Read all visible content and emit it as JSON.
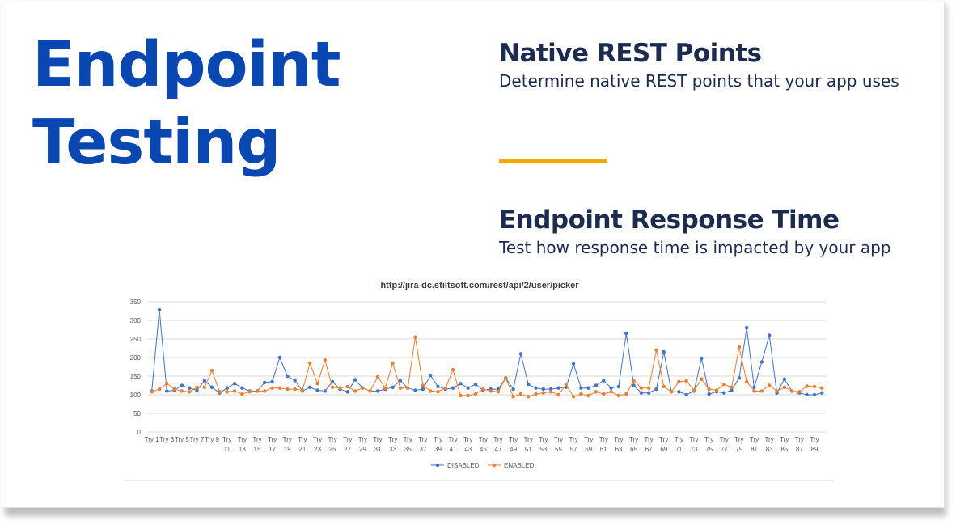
{
  "slide": {
    "title": "Endpoint Testing",
    "section1": {
      "heading": "Native REST Points",
      "text": "Determine native REST points that your app uses"
    },
    "section2": {
      "heading": "Endpoint Response Time",
      "text": "Test how response time is impacted by your app"
    }
  },
  "colors": {
    "title": "#0b47b1",
    "heading": "#1d2b4f",
    "divider": "#f5a800",
    "disabled": "#4472c4",
    "enabled": "#ed7d31"
  },
  "chart_data": {
    "type": "line",
    "title": "http://jira-dc.stiltsoft.com/rest/api/2/user/picker",
    "xlabel": "",
    "ylabel": "",
    "ylim": [
      0,
      350
    ],
    "yticks": [
      0,
      50,
      100,
      150,
      200,
      250,
      300,
      350
    ],
    "grid": true,
    "legend": "bottom",
    "x": [
      "Try 1",
      "Try 2",
      "Try 3",
      "Try 4",
      "Try 5",
      "Try 6",
      "Try 7",
      "Try 8",
      "Try 9",
      "Try 10",
      "Try 11",
      "Try 12",
      "Try 13",
      "Try 14",
      "Try 15",
      "Try 16",
      "Try 17",
      "Try 18",
      "Try 19",
      "Try 20",
      "Try 21",
      "Try 22",
      "Try 23",
      "Try 24",
      "Try 25",
      "Try 26",
      "Try 27",
      "Try 28",
      "Try 29",
      "Try 30",
      "Try 31",
      "Try 32",
      "Try 33",
      "Try 34",
      "Try 35",
      "Try 36",
      "Try 37",
      "Try 38",
      "Try 39",
      "Try 40",
      "Try 41",
      "Try 42",
      "Try 43",
      "Try 44",
      "Try 45",
      "Try 46",
      "Try 47",
      "Try 48",
      "Try 49",
      "Try 50",
      "Try 51",
      "Try 52",
      "Try 53",
      "Try 54",
      "Try 55",
      "Try 56",
      "Try 57",
      "Try 58",
      "Try 59",
      "Try 60",
      "Try 61",
      "Try 62",
      "Try 63",
      "Try 64",
      "Try 65",
      "Try 66",
      "Try 67",
      "Try 68",
      "Try 69",
      "Try 70",
      "Try 71",
      "Try 72",
      "Try 73",
      "Try 74",
      "Try 75",
      "Try 76",
      "Try 77",
      "Try 78",
      "Try 79",
      "Try 80",
      "Try 81",
      "Try 82",
      "Try 83",
      "Try 84",
      "Try 85",
      "Try 86",
      "Try 87",
      "Try 88",
      "Try 89",
      "Try 90"
    ],
    "tick_labels": [
      [
        "Try 1"
      ],
      [
        "Try 3"
      ],
      [
        "Try 5"
      ],
      [
        "Try 7"
      ],
      [
        "Try 9"
      ],
      [
        "Try",
        "11"
      ],
      [
        "Try",
        "13"
      ],
      [
        "Try",
        "15"
      ],
      [
        "Try",
        "17"
      ],
      [
        "Try",
        "19"
      ],
      [
        "Try",
        "21"
      ],
      [
        "Try",
        "23"
      ],
      [
        "Try",
        "25"
      ],
      [
        "Try",
        "27"
      ],
      [
        "Try",
        "29"
      ],
      [
        "Try",
        "31"
      ],
      [
        "Try",
        "33"
      ],
      [
        "Try",
        "35"
      ],
      [
        "Try",
        "37"
      ],
      [
        "Try",
        "39"
      ],
      [
        "Try",
        "41"
      ],
      [
        "Try",
        "43"
      ],
      [
        "Try",
        "45"
      ],
      [
        "Try",
        "47"
      ],
      [
        "Try",
        "49"
      ],
      [
        "Try",
        "51"
      ],
      [
        "Try",
        "53"
      ],
      [
        "Try",
        "55"
      ],
      [
        "Try",
        "57"
      ],
      [
        "Try",
        "59"
      ],
      [
        "Try",
        "61"
      ],
      [
        "Try",
        "63"
      ],
      [
        "Try",
        "65"
      ],
      [
        "Try",
        "67"
      ],
      [
        "Try",
        "69"
      ],
      [
        "Try",
        "71"
      ],
      [
        "Try",
        "73"
      ],
      [
        "Try",
        "75"
      ],
      [
        "Try",
        "77"
      ],
      [
        "Try",
        "79"
      ],
      [
        "Try",
        "81"
      ],
      [
        "Try",
        "83"
      ],
      [
        "Try",
        "85"
      ],
      [
        "Try",
        "87"
      ],
      [
        "Try",
        "89"
      ]
    ],
    "series": [
      {
        "name": "DISABLED",
        "color": "#4472c4",
        "values": [
          110,
          328,
          110,
          112,
          125,
          118,
          112,
          138,
          120,
          105,
          118,
          130,
          118,
          110,
          110,
          133,
          135,
          200,
          150,
          138,
          110,
          120,
          112,
          110,
          135,
          115,
          108,
          140,
          118,
          110,
          110,
          115,
          120,
          138,
          118,
          112,
          115,
          152,
          122,
          115,
          118,
          130,
          118,
          128,
          112,
          115,
          115,
          145,
          115,
          210,
          128,
          118,
          115,
          115,
          118,
          120,
          183,
          118,
          118,
          125,
          138,
          118,
          122,
          265,
          125,
          105,
          105,
          115,
          215,
          108,
          108,
          100,
          110,
          198,
          102,
          108,
          105,
          112,
          145,
          280,
          120,
          188,
          260,
          105,
          142,
          110,
          105,
          100,
          100,
          105
        ]
      },
      {
        "name": "ENABLED",
        "color": "#ed7d31",
        "values": [
          108,
          115,
          130,
          115,
          110,
          108,
          120,
          120,
          165,
          108,
          108,
          110,
          102,
          108,
          110,
          110,
          118,
          118,
          115,
          115,
          112,
          185,
          130,
          193,
          120,
          118,
          122,
          110,
          118,
          110,
          148,
          118,
          185,
          118,
          118,
          255,
          125,
          110,
          108,
          118,
          167,
          98,
          98,
          102,
          115,
          110,
          108,
          145,
          95,
          102,
          95,
          102,
          105,
          108,
          100,
          127,
          95,
          102,
          98,
          108,
          102,
          108,
          98,
          102,
          138,
          118,
          118,
          220,
          122,
          108,
          135,
          137,
          112,
          142,
          115,
          112,
          128,
          120,
          228,
          135,
          110,
          110,
          125,
          110,
          120,
          110,
          108,
          123,
          122,
          118
        ]
      }
    ]
  }
}
